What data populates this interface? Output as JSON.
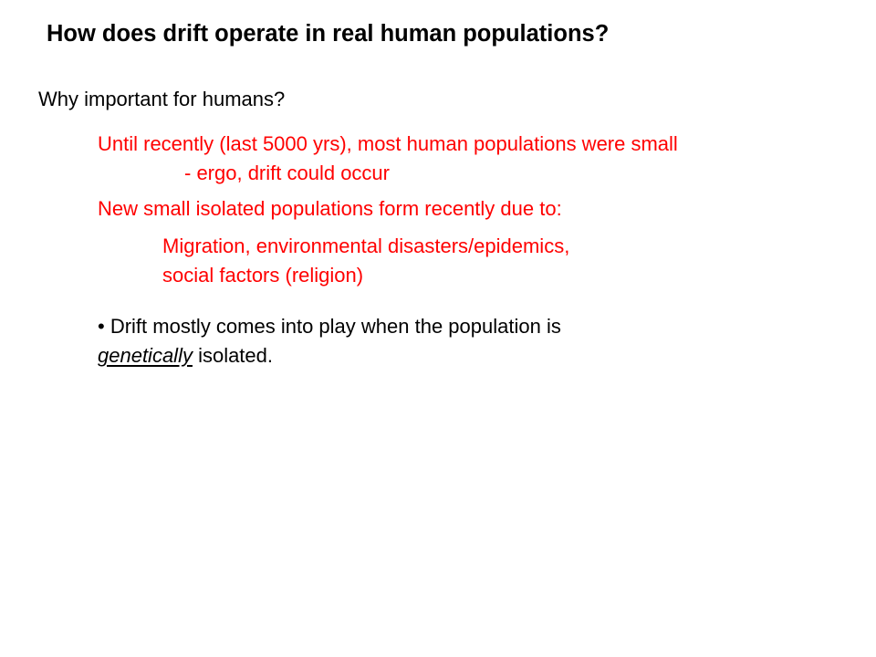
{
  "slide": {
    "title": "How does drift operate in real human populations?",
    "subheading": "Why important for humans?",
    "point1_line1": "Until recently (last 5000 yrs), most human populations were small",
    "point1_line2": "- ergo, drift could occur",
    "point2": "New small isolated populations form recently due to:",
    "point2_sub_line1": "Migration, environmental disasters/epidemics,",
    "point2_sub_line2": "social factors (religion)",
    "bullet_line1": "• Drift mostly comes into play when the population is",
    "bullet_line2_emphasis": "genetically",
    "bullet_line2_rest": " isolated."
  },
  "colors": {
    "heading_text": "#000000",
    "highlight_text": "#ff0000",
    "background": "#ffffff"
  }
}
